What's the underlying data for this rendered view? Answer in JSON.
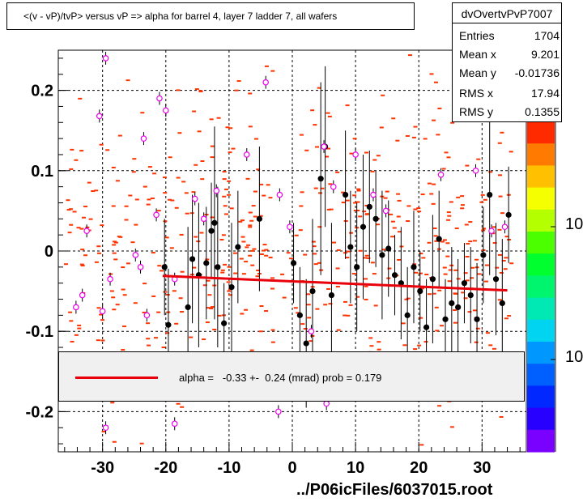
{
  "title": "<(v - vP)/tvP> versus   vP => alpha for barrel 4, layer 7 ladder 7, all wafers",
  "stats": {
    "name": "dvOvertvPvP7007",
    "rows": [
      {
        "key": "Entries",
        "value": "1704"
      },
      {
        "key": "Mean x",
        "value": "9.201"
      },
      {
        "key": "Mean y",
        "value": "-0.01736"
      },
      {
        "key": "RMS x",
        "value": "17.94"
      },
      {
        "key": "RMS y",
        "value": "0.1355"
      }
    ]
  },
  "legend": {
    "label": "alpha =   -0.33 +-  0.24 (mrad) prob = 0.179",
    "color": "#e8000b"
  },
  "footer": "../P06icFiles/6037015.root",
  "palette_labels": [
    "10",
    "10"
  ],
  "colors": {
    "scatter": "#ff3300",
    "open_marker": "#ee00ee",
    "profile": "#000000",
    "fit": "#e8000b",
    "legend_bg": "#f0f0f0"
  },
  "chart_data": {
    "type": "scatter",
    "xlim": [
      -37,
      37
    ],
    "ylim": [
      -0.25,
      0.25
    ],
    "x_ticks": [
      "-30",
      "-20",
      "-10",
      "0",
      "10",
      "20",
      "30"
    ],
    "x_tick_values": [
      -30,
      -20,
      -10,
      0,
      10,
      20,
      30
    ],
    "y_ticks": [
      "-0.2",
      "-0.1",
      "0",
      "0.1",
      "0.2"
    ],
    "y_tick_values": [
      -0.2,
      -0.1,
      0,
      0.1,
      0.2
    ],
    "grid": true,
    "fit_line": {
      "x": [
        -20.5,
        34
      ],
      "y": [
        -0.031,
        -0.049
      ]
    },
    "profile_filled": [
      {
        "x": -20.2,
        "y": -0.02,
        "e": 0.06
      },
      {
        "x": -19.6,
        "y": -0.092,
        "e": 0.07
      },
      {
        "x": -16.5,
        "y": -0.07,
        "e": 0.1
      },
      {
        "x": -15.8,
        "y": -0.01,
        "e": 0.08
      },
      {
        "x": -14.8,
        "y": -0.03,
        "e": 0.09
      },
      {
        "x": -13.6,
        "y": -0.015,
        "e": 0.07
      },
      {
        "x": -12.8,
        "y": 0.025,
        "e": 0.06
      },
      {
        "x": -12.3,
        "y": 0.035,
        "e": 0.12
      },
      {
        "x": -11.8,
        "y": -0.02,
        "e": 0.1
      },
      {
        "x": -10.8,
        "y": -0.09,
        "e": 0.05
      },
      {
        "x": -9.6,
        "y": -0.045,
        "e": 0.08
      },
      {
        "x": -8.6,
        "y": 0.005,
        "e": 0.07
      },
      {
        "x": -5.2,
        "y": 0.04,
        "e": 0.09
      },
      {
        "x": 0.2,
        "y": -0.015,
        "e": 0.05
      },
      {
        "x": 1.2,
        "y": -0.08,
        "e": 0.06
      },
      {
        "x": 2.2,
        "y": -0.115,
        "e": 0.08
      },
      {
        "x": 3.2,
        "y": -0.05,
        "e": 0.09
      },
      {
        "x": 4.5,
        "y": 0.09,
        "e": 0.12
      },
      {
        "x": 5.2,
        "y": 0.13,
        "e": 0.1
      },
      {
        "x": 6.2,
        "y": -0.055,
        "e": 0.09
      },
      {
        "x": 8.4,
        "y": 0.07,
        "e": 0.08
      },
      {
        "x": 9.2,
        "y": 0.005,
        "e": 0.07
      },
      {
        "x": 10.2,
        "y": -0.02,
        "e": 0.08
      },
      {
        "x": 11.2,
        "y": 0.03,
        "e": 0.09
      },
      {
        "x": 12.2,
        "y": 0.055,
        "e": 0.07
      },
      {
        "x": 13.2,
        "y": 0.04,
        "e": 0.06
      },
      {
        "x": 14.2,
        "y": -0.005,
        "e": 0.08
      },
      {
        "x": 15.2,
        "y": 0.003,
        "e": 0.06
      },
      {
        "x": 16.2,
        "y": -0.03,
        "e": 0.05
      },
      {
        "x": 17.2,
        "y": -0.04,
        "e": 0.07
      },
      {
        "x": 18.2,
        "y": -0.08,
        "e": 0.06
      },
      {
        "x": 19.2,
        "y": -0.02,
        "e": 0.07
      },
      {
        "x": 20.2,
        "y": -0.05,
        "e": 0.05
      },
      {
        "x": 21.2,
        "y": -0.095,
        "e": 0.06
      },
      {
        "x": 22.2,
        "y": -0.035,
        "e": 0.08
      },
      {
        "x": 23.2,
        "y": 0.015,
        "e": 0.06
      },
      {
        "x": 24.2,
        "y": -0.085,
        "e": 0.05
      },
      {
        "x": 25.2,
        "y": -0.065,
        "e": 0.07
      },
      {
        "x": 26.2,
        "y": -0.07,
        "e": 0.06
      },
      {
        "x": 27.2,
        "y": -0.04,
        "e": 0.05
      },
      {
        "x": 28.2,
        "y": -0.055,
        "e": 0.06
      },
      {
        "x": 29.2,
        "y": -0.085,
        "e": 0.07
      },
      {
        "x": 30.2,
        "y": -0.005,
        "e": 0.06
      },
      {
        "x": 31.2,
        "y": 0.07,
        "e": 0.1
      },
      {
        "x": 32.2,
        "y": -0.035,
        "e": 0.07
      },
      {
        "x": 33.2,
        "y": -0.065,
        "e": 0.08
      },
      {
        "x": 34.2,
        "y": 0.045,
        "e": 0.06
      }
    ],
    "profile_open": [
      {
        "x": -34.2,
        "y": -0.07
      },
      {
        "x": -33.2,
        "y": -0.055
      },
      {
        "x": -32.5,
        "y": 0.025
      },
      {
        "x": -30.5,
        "y": 0.168
      },
      {
        "x": -30.0,
        "y": -0.075
      },
      {
        "x": -29.5,
        "y": 0.24
      },
      {
        "x": -28.8,
        "y": -0.035
      },
      {
        "x": -24.8,
        "y": -0.005
      },
      {
        "x": -24.0,
        "y": -0.02
      },
      {
        "x": -23.5,
        "y": 0.14
      },
      {
        "x": -23.0,
        "y": -0.08
      },
      {
        "x": -21.5,
        "y": 0.045
      },
      {
        "x": -21.0,
        "y": 0.19
      },
      {
        "x": -20.0,
        "y": 0.175
      },
      {
        "x": -18.6,
        "y": -0.035
      },
      {
        "x": -15.4,
        "y": 0.065
      },
      {
        "x": -14.0,
        "y": 0.04
      },
      {
        "x": -12.0,
        "y": 0.075
      },
      {
        "x": -7.2,
        "y": 0.12
      },
      {
        "x": -4.2,
        "y": 0.21
      },
      {
        "x": -2.0,
        "y": 0.07
      },
      {
        "x": -0.4,
        "y": 0.03
      },
      {
        "x": 3.0,
        "y": -0.1
      },
      {
        "x": 5.0,
        "y": 0.13
      },
      {
        "x": 6.5,
        "y": 0.08
      },
      {
        "x": 10.0,
        "y": 0.12
      },
      {
        "x": 12.8,
        "y": 0.07
      },
      {
        "x": 14.8,
        "y": 0.05
      },
      {
        "x": 23.5,
        "y": 0.095
      },
      {
        "x": 29.0,
        "y": 0.1
      },
      {
        "x": 31.5,
        "y": 0.025
      },
      {
        "x": 33.6,
        "y": 0.03
      },
      {
        "x": 5.4,
        "y": -0.19
      },
      {
        "x": -2.2,
        "y": -0.2
      },
      {
        "x": -29.5,
        "y": -0.22
      },
      {
        "x": -18.6,
        "y": -0.215
      }
    ]
  }
}
